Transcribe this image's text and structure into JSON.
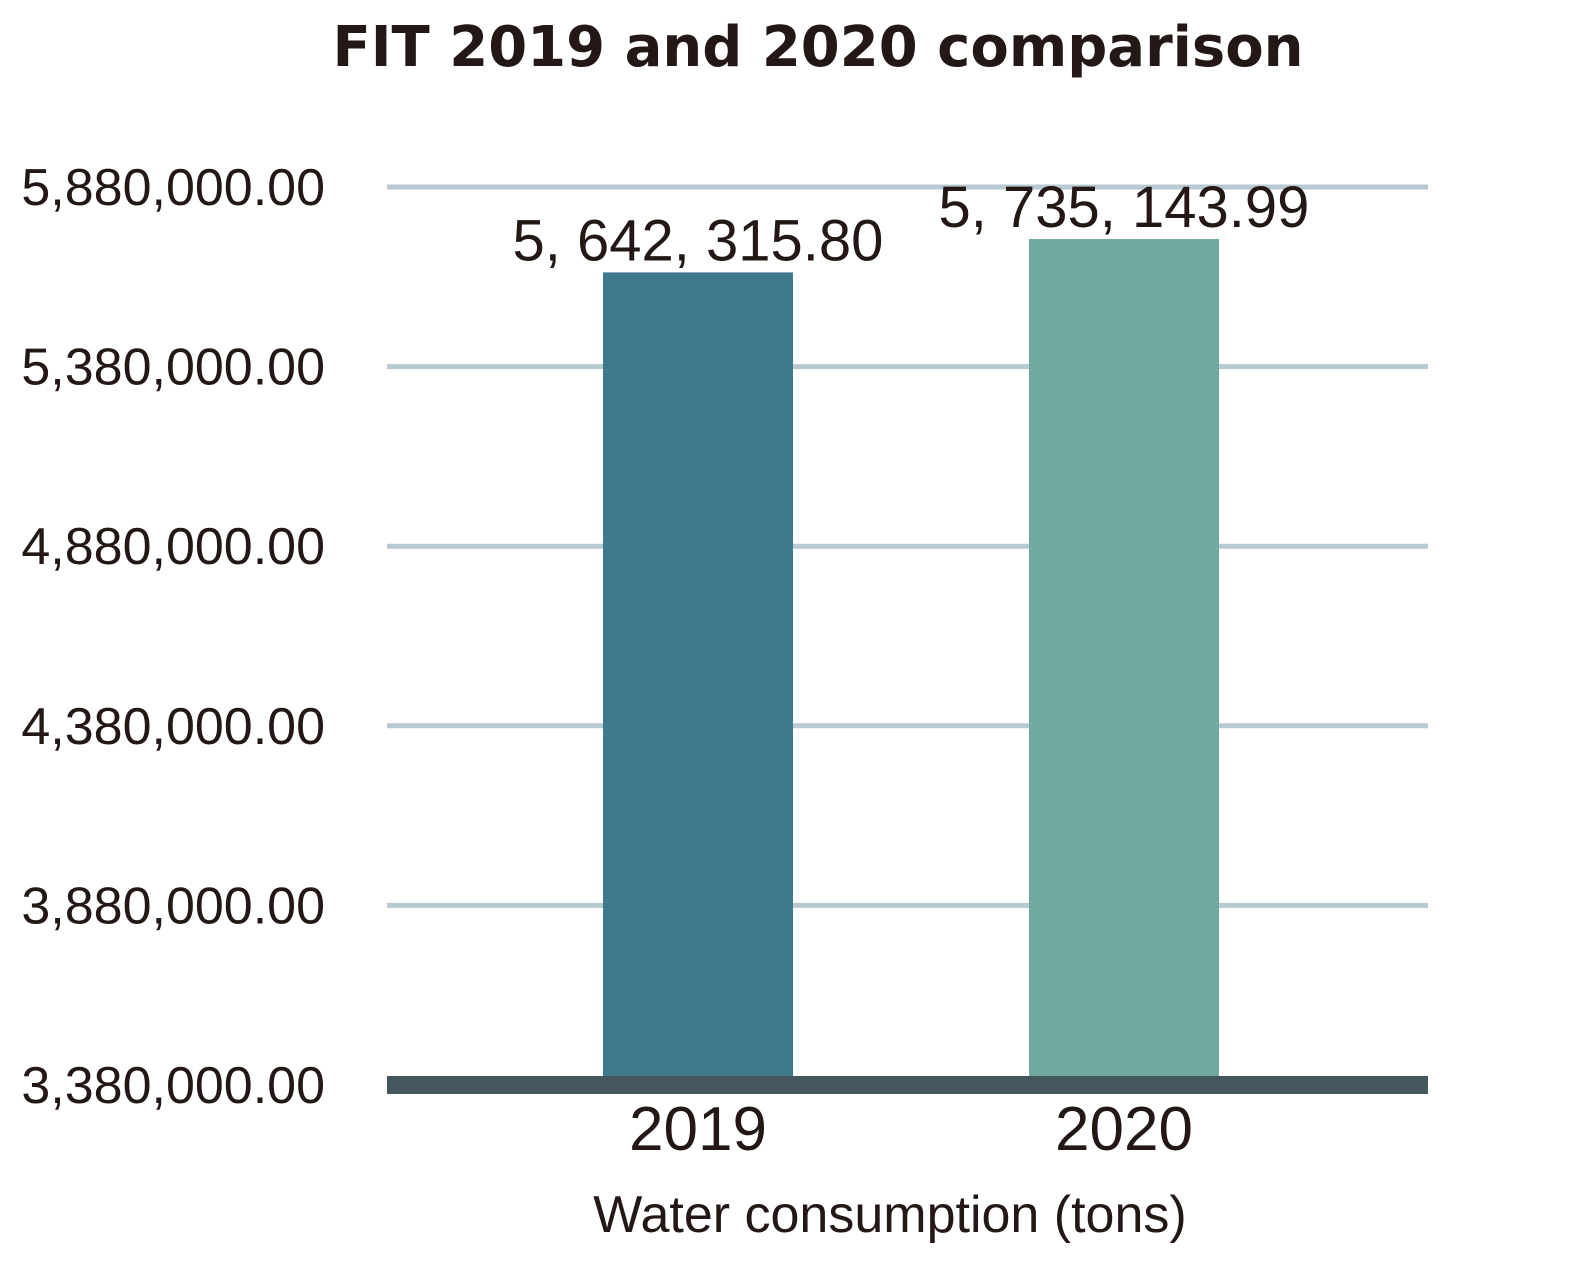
{
  "chart_data": {
    "type": "bar",
    "title": "FIT 2019 and 2020 comparison",
    "xlabel": "Water consumption (tons)",
    "ylabel": "",
    "categories": [
      "2019",
      "2020"
    ],
    "values": [
      5642315.8,
      5735143.99
    ],
    "value_labels": [
      "5, 642, 315.80",
      "5, 735, 143.99"
    ],
    "ylim": [
      3380000,
      5880000
    ],
    "yticks": [
      3380000,
      3880000,
      4380000,
      4880000,
      5380000,
      5880000
    ],
    "ytick_labels": [
      "3,380,000.00",
      "3,880,000.00",
      "4,380,000.00",
      "4,880,000.00",
      "5,380,000.00",
      "5,880,000.00"
    ],
    "bar_colors": [
      "#41798c",
      "#70a99f"
    ],
    "grid_color": "#b9c9d2",
    "baseline_color": "#44575c",
    "grid": true,
    "legend": "none"
  }
}
